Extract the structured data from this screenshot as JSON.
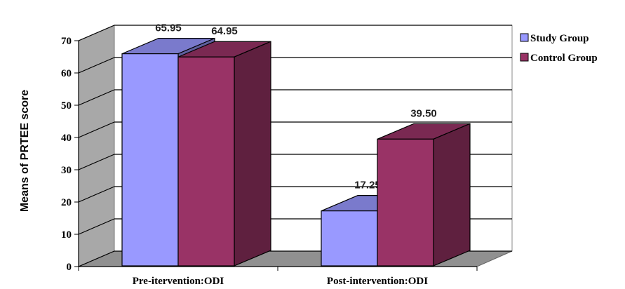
{
  "chart_data": {
    "type": "bar",
    "categories": [
      "Pre-itervention:ODI",
      "Post-intervention:ODI"
    ],
    "series": [
      {
        "name": "Study Group",
        "values": [
          65.95,
          17.25
        ],
        "labels": [
          "65.95",
          "17.25"
        ],
        "color": "#9999ff"
      },
      {
        "name": "Control Group",
        "values": [
          64.95,
          39.5
        ],
        "labels": [
          "64.95",
          "39.50"
        ],
        "color": "#993366"
      }
    ],
    "ylabel": "Means of PRTEE score",
    "ylim": [
      0,
      70
    ],
    "yticks": [
      "0",
      "10",
      "20",
      "30",
      "40",
      "50",
      "60",
      "70"
    ],
    "grid": true,
    "legend": "top-right",
    "style": "3d-clustered"
  }
}
